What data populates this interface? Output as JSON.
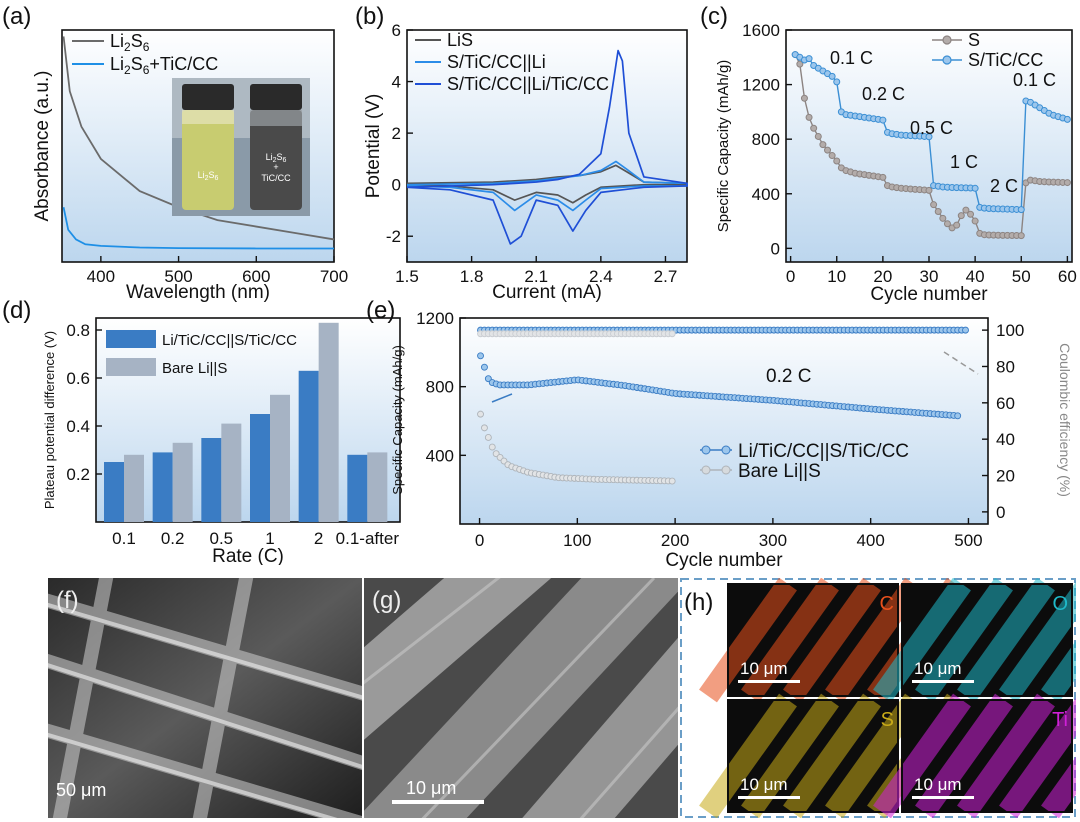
{
  "panels": {
    "a": {
      "label": "(a)",
      "chart_data": {
        "type": "line",
        "xlabel": "Wavelength (nm)",
        "ylabel": "Absorbance (a.u.)",
        "xlim": [
          350,
          700
        ],
        "xticks": [
          "400",
          "500",
          "600",
          "700"
        ],
        "legend_placement": "top-left",
        "series": [
          {
            "name": "Li2S6",
            "legend_main": "Li",
            "legend_sub1": "2",
            "legend_mid": "S",
            "legend_sub2": "6",
            "legend_tail": "",
            "color": "#6b6b6b",
            "x": [
              352,
              360,
              375,
              400,
              450,
              500,
              550,
              600,
              650,
              700
            ],
            "y": [
              1.0,
              0.83,
              0.72,
              0.62,
              0.52,
              0.47,
              0.43,
              0.41,
              0.39,
              0.37
            ]
          },
          {
            "name": "Li2S6+TiC/CC",
            "legend_main": "Li",
            "legend_sub1": "2",
            "legend_mid": "S",
            "legend_sub2": "6",
            "legend_tail": "+TiC/CC",
            "color": "#1e8fe6",
            "x": [
              352,
              358,
              368,
              380,
              400,
              450,
              500,
              600,
              700
            ],
            "y": [
              0.47,
              0.4,
              0.37,
              0.355,
              0.35,
              0.345,
              0.343,
              0.342,
              0.342
            ]
          }
        ],
        "inset": {
          "vial1_main": "Li",
          "vial1_sub1": "2",
          "vial1_mid": "S",
          "vial1_sub2": "6",
          "vial2_main": "Li",
          "vial2_sub1": "2",
          "vial2_mid": "S",
          "vial2_sub2": "6",
          "vial2_plus": "+",
          "vial2_line2": "TiC/CC"
        }
      }
    },
    "b": {
      "label": "(b)",
      "chart_data": {
        "type": "line",
        "xlabel": "Current (mA)",
        "ylabel": "Potential (V)",
        "xlim": [
          1.5,
          2.8
        ],
        "ylim": [
          -3,
          6
        ],
        "xticks": [
          "1.5",
          "1.8",
          "2.1",
          "2.4",
          "2.7"
        ],
        "yticks": [
          "-2",
          "0",
          "2",
          "4",
          "6"
        ],
        "legend_placement": "top-left",
        "series": [
          {
            "name": "LiS",
            "color": "#555555",
            "x": [
              1.5,
              1.9,
              2.0,
              2.1,
              2.2,
              2.3,
              2.4,
              2.47,
              2.52,
              2.6,
              2.8,
              2.8,
              2.6,
              2.4,
              2.33,
              2.27,
              2.2,
              2.1,
              2.0,
              1.9,
              1.7,
              1.5
            ],
            "y": [
              0.05,
              0.1,
              0.15,
              0.2,
              0.3,
              0.35,
              0.5,
              0.75,
              0.5,
              0.1,
              0.05,
              0.0,
              0.0,
              -0.1,
              -0.4,
              -0.7,
              -0.4,
              -0.3,
              -0.6,
              -0.2,
              -0.05,
              0.0
            ]
          },
          {
            "name": "S/TiC/CC||Li",
            "color": "#2b8ce8",
            "x": [
              1.5,
              1.9,
              2.0,
              2.1,
              2.2,
              2.3,
              2.4,
              2.47,
              2.52,
              2.6,
              2.8,
              2.8,
              2.6,
              2.4,
              2.33,
              2.27,
              2.2,
              2.1,
              2.0,
              1.9,
              1.7,
              1.5
            ],
            "y": [
              0.0,
              0.05,
              0.1,
              0.15,
              0.25,
              0.35,
              0.55,
              0.9,
              0.6,
              0.1,
              0.05,
              -0.05,
              -0.05,
              -0.15,
              -0.6,
              -1.0,
              -0.6,
              -0.4,
              -1.0,
              -0.3,
              -0.1,
              -0.05
            ]
          },
          {
            "name": "S/TiC/CC||Li/TiC/CC",
            "color": "#1f4fd6",
            "x": [
              1.5,
              1.9,
              2.0,
              2.1,
              2.2,
              2.3,
              2.4,
              2.44,
              2.48,
              2.5,
              2.53,
              2.6,
              2.8,
              2.8,
              2.6,
              2.4,
              2.33,
              2.27,
              2.2,
              2.1,
              2.03,
              1.98,
              1.9,
              1.7,
              1.5
            ],
            "y": [
              -0.1,
              0.0,
              0.05,
              0.1,
              0.2,
              0.4,
              1.2,
              3.0,
              5.2,
              4.8,
              2.0,
              0.3,
              0.05,
              -0.05,
              -0.1,
              -0.3,
              -1.0,
              -1.8,
              -0.8,
              -0.6,
              -2.0,
              -2.3,
              -0.6,
              -0.2,
              -0.1
            ]
          }
        ]
      }
    },
    "c": {
      "label": "(c)",
      "chart_data": {
        "type": "line",
        "xlabel": "Cycle number",
        "ylabel": "Specific Capacity (mAh/g)",
        "xlim": [
          -1,
          61
        ],
        "ylim": [
          -100,
          1600
        ],
        "xticks": [
          "0",
          "10",
          "20",
          "30",
          "40",
          "50",
          "60"
        ],
        "yticks": [
          "0",
          "400",
          "800",
          "1200",
          "1600"
        ],
        "legend_placement": "top-right",
        "annotations": [
          "0.1 C",
          "0.2 C",
          "0.5 C",
          "1 C",
          "2 C",
          "0.1 C"
        ],
        "series": [
          {
            "name": "S",
            "color": "#8c8482",
            "y": [
              1420,
              1350,
              1100,
              960,
              880,
              820,
              760,
              720,
              680,
              640,
              590,
              570,
              560,
              550,
              545,
              540,
              535,
              530,
              525,
              520,
              460,
              450,
              445,
              440,
              438,
              435,
              432,
              430,
              428,
              425,
              320,
              270,
              220,
              180,
              150,
              170,
              240,
              280,
              250,
              200,
              110,
              100,
              98,
              97,
              96,
              95,
              95,
              94,
              94,
              93,
              480,
              500,
              495,
              490,
              488,
              486,
              485,
              484,
              483,
              482
            ]
          },
          {
            "name": "S/TiC/CC",
            "color": "#3b8fd4",
            "y": [
              1420,
              1400,
              1380,
              1390,
              1340,
              1320,
              1300,
              1280,
              1260,
              1220,
              1000,
              980,
              975,
              970,
              965,
              960,
              955,
              950,
              945,
              940,
              850,
              840,
              835,
              830,
              828,
              826,
              824,
              822,
              820,
              818,
              460,
              455,
              450,
              448,
              446,
              445,
              444,
              443,
              442,
              440,
              300,
              295,
              292,
              290,
              289,
              288,
              287,
              286,
              285,
              284,
              1080,
              1070,
              1050,
              1030,
              1010,
              990,
              975,
              965,
              955,
              945
            ]
          }
        ]
      }
    },
    "d": {
      "label": "(d)",
      "chart_data": {
        "type": "bar",
        "xlabel": "Rate (C)",
        "ylabel": "Plateau potential difference (V)",
        "ylim": [
          0,
          0.85
        ],
        "yticks": [
          "0.2",
          "0.4",
          "0.6",
          "0.8"
        ],
        "categories": [
          "0.1",
          "0.2",
          "0.5",
          "1",
          "2",
          "0.1-after"
        ],
        "legend_placement": "top-left",
        "series": [
          {
            "name": "Li/TiC/CC||S/TiC/CC",
            "color": "#3a7cc4",
            "values": [
              0.25,
              0.29,
              0.35,
              0.45,
              0.63,
              0.28
            ]
          },
          {
            "name": "Bare Li||S",
            "color": "#a6b3c4",
            "values": [
              0.28,
              0.33,
              0.41,
              0.53,
              0.83,
              0.29
            ]
          }
        ]
      }
    },
    "e": {
      "label": "(e)",
      "chart_data": {
        "type": "scatter",
        "xlabel": "Cycle number",
        "ylabel": "Specific Capacity (mAh/g)",
        "y2label": "Coulombic efficiency (%)",
        "xlim": [
          -20,
          520
        ],
        "ylim": [
          0,
          1200
        ],
        "y2lim": [
          -6.67,
          106.67
        ],
        "xticks": [
          "0",
          "100",
          "200",
          "300",
          "400",
          "500"
        ],
        "yticks": [
          "400",
          "800",
          "1200"
        ],
        "y2ticks": [
          "0",
          "20",
          "40",
          "60",
          "80",
          "100"
        ],
        "annotation": "0.2 C",
        "legend_placement": "bottom-right",
        "series": [
          {
            "name": "Li/TiC/CC||S/TiC/CC",
            "color": "#3a7cc4",
            "axis": "left",
            "x": [
              1,
              10,
              20,
              50,
              100,
              150,
              200,
              300,
              400,
              490
            ],
            "y": [
              980,
              830,
              810,
              810,
              840,
              805,
              760,
              720,
              670,
              630
            ]
          },
          {
            "name": "Bare Li||S",
            "color": "#aeb4ba",
            "axis": "left",
            "x": [
              1,
              5,
              15,
              30,
              50,
              80,
              120,
              160,
              200
            ],
            "y": [
              640,
              560,
              420,
              340,
              300,
              270,
              260,
              255,
              250
            ]
          },
          {
            "name": "CE Li/TiC/CC||S/TiC/CC",
            "color": "#3a7cc4",
            "axis": "right",
            "x": [
              1,
              100,
              200,
              300,
              400,
              500
            ],
            "y": [
              100,
              100,
              100,
              100,
              100,
              100
            ]
          },
          {
            "name": "CE Bare Li||S",
            "color": "#c9cdd2",
            "axis": "right",
            "x": [
              1,
              50,
              100,
              150,
              200
            ],
            "y": [
              98,
              98,
              98,
              98,
              98
            ]
          }
        ]
      }
    },
    "f": {
      "label": "(f)",
      "scale_bar": "50 μm"
    },
    "g": {
      "label": "(g)",
      "scale_bar": "10 μm"
    },
    "h": {
      "label": "(h)",
      "maps": [
        {
          "element": "C",
          "color": "#e8501c",
          "scale_bar": "10 μm"
        },
        {
          "element": "O",
          "color": "#1fb8c8",
          "scale_bar": "10 μm"
        },
        {
          "element": "S",
          "color": "#c8aa18",
          "scale_bar": "10 μm"
        },
        {
          "element": "Ti",
          "color": "#d020d8",
          "scale_bar": "10 μm"
        }
      ]
    }
  }
}
